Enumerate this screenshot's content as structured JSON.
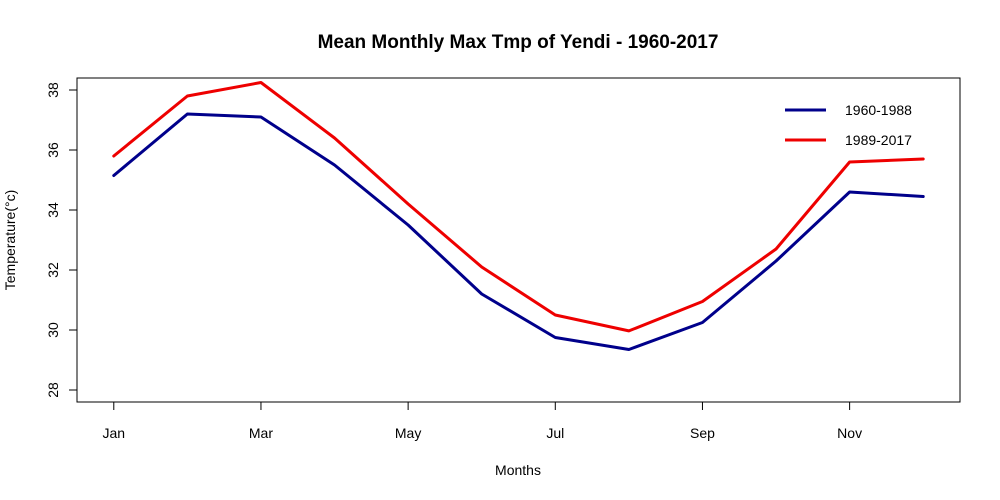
{
  "chart_data": {
    "type": "line",
    "title": "Mean Monthly Max Tmp of Yendi - 1960-2017",
    "xlabel": "Months",
    "ylabel": "Temperature(°c)",
    "x": [
      1,
      2,
      3,
      4,
      5,
      6,
      7,
      8,
      9,
      10,
      11,
      12
    ],
    "x_tick_values": [
      1,
      3,
      5,
      7,
      9,
      11
    ],
    "x_tick_labels": [
      "Jan",
      "Mar",
      "May",
      "Jul",
      "Sep",
      "Nov"
    ],
    "y_ticks": [
      28,
      30,
      32,
      34,
      36,
      38
    ],
    "xlim": [
      0.5,
      12.5
    ],
    "ylim": [
      27.6,
      38.4
    ],
    "grid": false,
    "legend_position": "top-right",
    "series": [
      {
        "name": "1960-1988",
        "color": "#00008B",
        "values": [
          35.15,
          37.2,
          37.1,
          35.5,
          33.5,
          31.2,
          29.75,
          29.35,
          30.25,
          32.3,
          34.6,
          34.45
        ]
      },
      {
        "name": "1989-2017",
        "color": "#EE0000",
        "values": [
          35.8,
          37.8,
          38.25,
          36.4,
          34.2,
          32.1,
          30.5,
          29.97,
          30.95,
          32.7,
          35.6,
          35.7
        ]
      }
    ]
  }
}
